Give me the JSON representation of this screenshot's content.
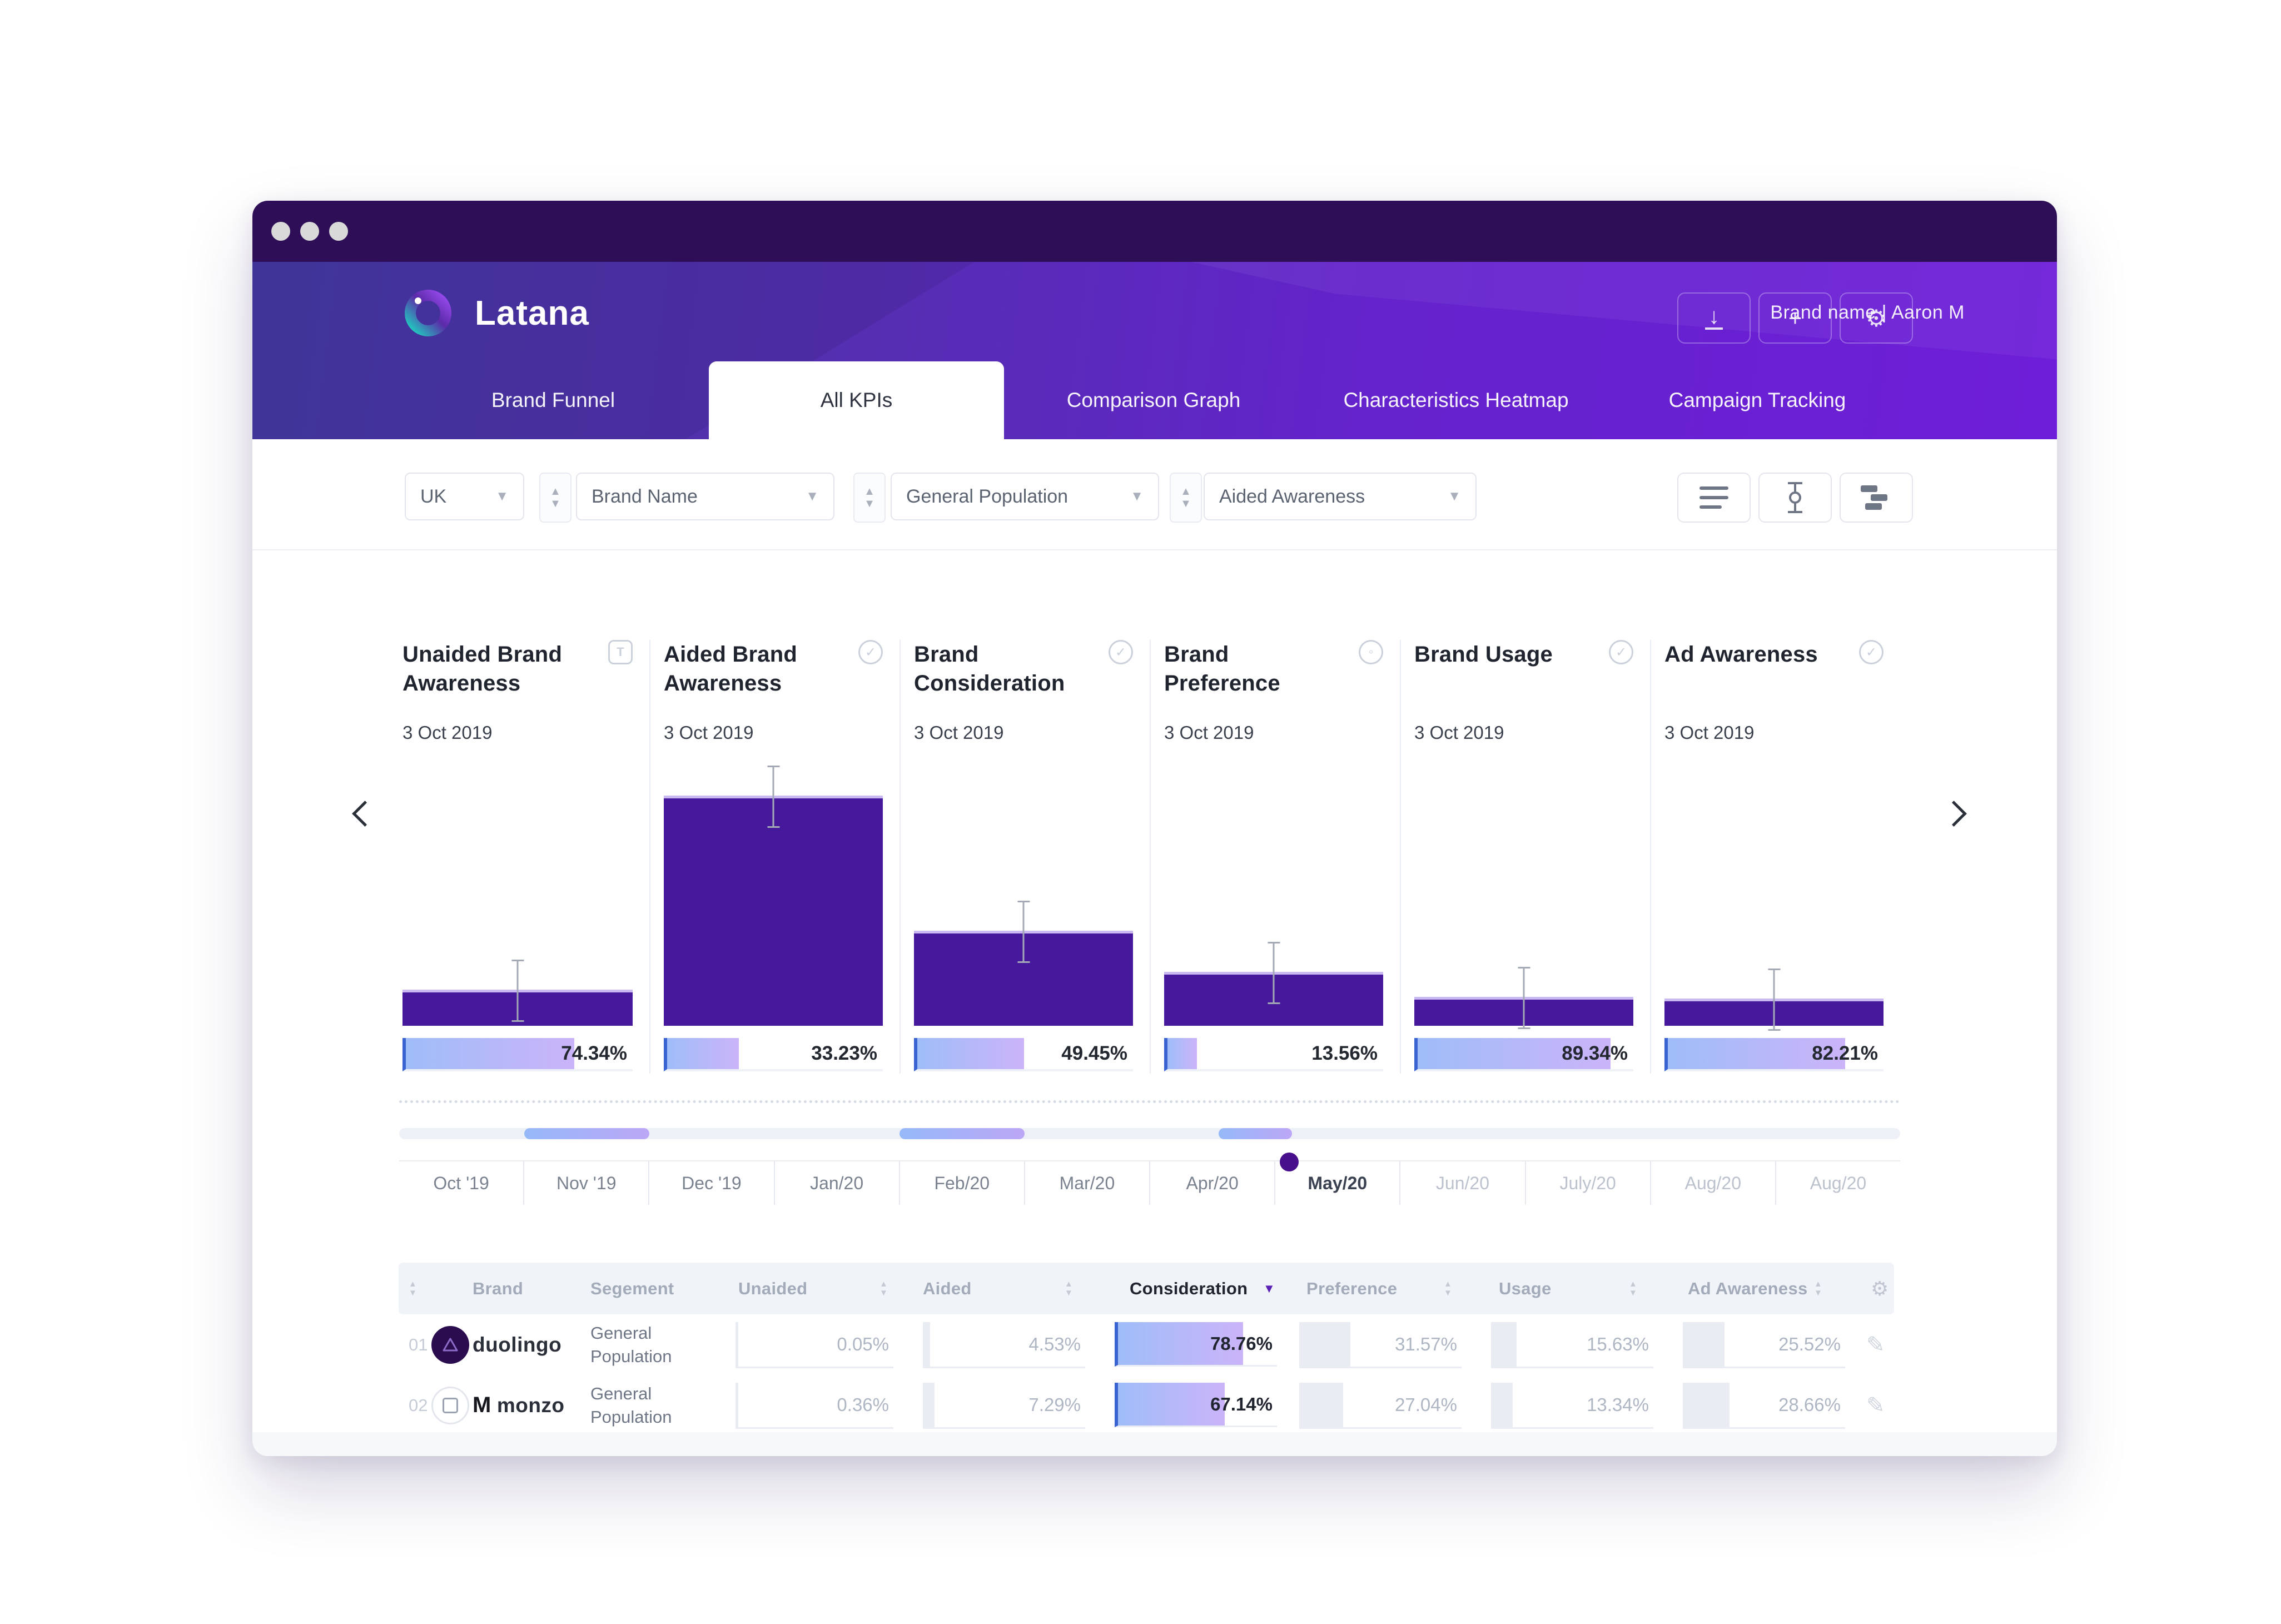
{
  "header": {
    "logo_text": "Latana",
    "account_text": "Brand name  |  Aaron M",
    "action_buttons": [
      {
        "name": "download",
        "glyph": "↓"
      },
      {
        "name": "add",
        "glyph": "+"
      },
      {
        "name": "settings",
        "glyph": "⚙"
      }
    ],
    "tabs": [
      {
        "label": "Brand Funnel",
        "active": false
      },
      {
        "label": "All KPIs",
        "active": true
      },
      {
        "label": "Comparison Graph",
        "active": false
      },
      {
        "label": "Characteristics Heatmap",
        "active": false
      },
      {
        "label": "Campaign Tracking",
        "active": false
      }
    ]
  },
  "filters": {
    "dropdowns": [
      {
        "value": "UK"
      },
      {
        "value": "Brand Name"
      },
      {
        "value": "General Population"
      },
      {
        "value": "Aided Awareness"
      }
    ],
    "tools": [
      {
        "name": "list-view"
      },
      {
        "name": "error-bars"
      },
      {
        "name": "stacked-bars"
      }
    ]
  },
  "chart_data": {
    "type": "bar",
    "date": "3 Oct 2019",
    "unit": "%",
    "kpis": [
      {
        "name": "Unaided Brand Awareness",
        "icon": "t-badge",
        "value": 74.34,
        "value_label": "74.34%",
        "bar_height_pct": 12.8
      },
      {
        "name": "Aided Brand Awareness",
        "icon": "check-circle",
        "value": 33.23,
        "value_label": "33.23%",
        "bar_height_pct": 87
      },
      {
        "name": "Brand Consideration",
        "icon": "check-circle",
        "value": 49.45,
        "value_label": "49.45%",
        "bar_height_pct": 35.3
      },
      {
        "name": "Brand Preference",
        "icon": "target-circle",
        "value": 13.56,
        "value_label": "13.56%",
        "bar_height_pct": 19.6
      },
      {
        "name": "Brand Usage",
        "icon": "check-circle",
        "value": 89.34,
        "value_label": "89.34%",
        "bar_height_pct": 10
      },
      {
        "name": "Ad Awareness",
        "icon": "check-circle",
        "value": 82.21,
        "value_label": "82.21%",
        "bar_height_pct": 9.4
      }
    ],
    "timeline": {
      "months": [
        {
          "label": "Oct '19",
          "state": "past"
        },
        {
          "label": "Nov '19",
          "state": "past"
        },
        {
          "label": "Dec '19",
          "state": "past"
        },
        {
          "label": "Jan/20",
          "state": "past"
        },
        {
          "label": "Feb/20",
          "state": "past"
        },
        {
          "label": "Mar/20",
          "state": "past"
        },
        {
          "label": "Apr/20",
          "state": "past"
        },
        {
          "label": "May/20",
          "state": "selected"
        },
        {
          "label": "Jun/20",
          "state": "future"
        },
        {
          "label": "July/20",
          "state": "future"
        },
        {
          "label": "Aug/20",
          "state": "future"
        },
        {
          "label": "Aug/20",
          "state": "future"
        }
      ],
      "segments": [
        {
          "left_pct": 8.33,
          "width_pct": 8.33
        },
        {
          "left_pct": 33.33,
          "width_pct": 8.33
        },
        {
          "left_pct": 54.6,
          "width_pct": 4.9
        }
      ],
      "marker": {
        "left_pct": 59.3,
        "month": "May/20"
      }
    }
  },
  "table": {
    "columns": {
      "brand": "Brand",
      "segment": "Segement",
      "unaided": "Unaided",
      "aided": "Aided",
      "consideration": "Consideration",
      "preference": "Preference",
      "usage": "Usage",
      "ad_awareness": "Ad Awareness"
    },
    "sorted_column": "Consideration",
    "rows": [
      {
        "num": "01",
        "brand": "duolingo",
        "segment": "General Population",
        "unaided": {
          "label": "0.05%",
          "value": 0.05
        },
        "aided": {
          "label": "4.53%",
          "value": 4.53
        },
        "consideration": {
          "label": "78.76%",
          "value": 78.76
        },
        "preference": {
          "label": "31.57%",
          "value": 31.57
        },
        "usage": {
          "label": "15.63%",
          "value": 15.63
        },
        "ad_awareness": {
          "label": "25.52%",
          "value": 25.52
        }
      },
      {
        "num": "02",
        "brand": "monzo",
        "segment": "General Population",
        "unaided": {
          "label": "0.36%",
          "value": 0.36
        },
        "aided": {
          "label": "7.29%",
          "value": 7.29
        },
        "consideration": {
          "label": "67.14%",
          "value": 67.14
        },
        "preference": {
          "label": "27.04%",
          "value": 27.04
        },
        "usage": {
          "label": "13.34%",
          "value": 13.34
        },
        "ad_awareness": {
          "label": "28.66%",
          "value": 28.66
        }
      }
    ]
  }
}
